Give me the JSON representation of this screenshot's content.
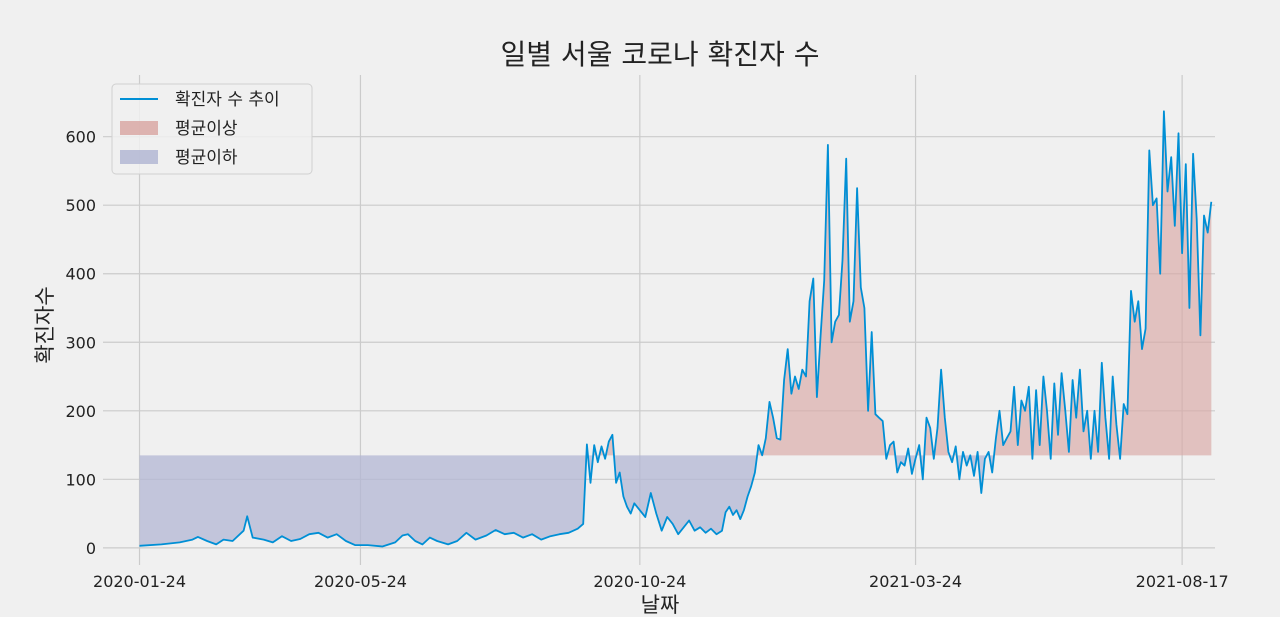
{
  "chart_data": {
    "type": "line",
    "title": "일별 서울 코로나 확진자 수",
    "xlabel": "날짜",
    "ylabel": "확진자수",
    "xlim": [
      "2020-01-04",
      "2021-09-04"
    ],
    "ylim": [
      -25,
      690
    ],
    "x_ticks": [
      "2020-01-24",
      "2020-05-24",
      "2020-10-24",
      "2021-03-24",
      "2021-08-17"
    ],
    "y_ticks": [
      0,
      100,
      200,
      300,
      400,
      500,
      600
    ],
    "mean_value": 135,
    "grid": true,
    "legend_position": "top-left",
    "legend": [
      {
        "label": "확진자 수 추이",
        "kind": "line",
        "color": "#008fd5"
      },
      {
        "label": "평균이상",
        "kind": "patch",
        "color": "#d9a8a4"
      },
      {
        "label": "평균이하",
        "kind": "patch",
        "color": "#b3b7d4"
      }
    ],
    "series": [
      {
        "name": "확진자 수 추이",
        "color": "#008fd5",
        "points": [
          [
            "2020-01-24",
            3
          ],
          [
            "2020-02-05",
            5
          ],
          [
            "2020-02-15",
            8
          ],
          [
            "2020-02-22",
            12
          ],
          [
            "2020-02-25",
            16
          ],
          [
            "2020-03-01",
            10
          ],
          [
            "2020-03-06",
            5
          ],
          [
            "2020-03-10",
            12
          ],
          [
            "2020-03-15",
            10
          ],
          [
            "2020-03-21",
            25
          ],
          [
            "2020-03-23",
            46
          ],
          [
            "2020-03-26",
            15
          ],
          [
            "2020-04-01",
            12
          ],
          [
            "2020-04-06",
            8
          ],
          [
            "2020-04-11",
            17
          ],
          [
            "2020-04-16",
            10
          ],
          [
            "2020-04-21",
            13
          ],
          [
            "2020-04-26",
            20
          ],
          [
            "2020-05-01",
            22
          ],
          [
            "2020-05-06",
            15
          ],
          [
            "2020-05-11",
            20
          ],
          [
            "2020-05-16",
            10
          ],
          [
            "2020-05-21",
            4
          ],
          [
            "2020-05-28",
            4
          ],
          [
            "2020-06-05",
            2
          ],
          [
            "2020-06-12",
            8
          ],
          [
            "2020-06-16",
            18
          ],
          [
            "2020-06-19",
            20
          ],
          [
            "2020-06-23",
            10
          ],
          [
            "2020-06-27",
            5
          ],
          [
            "2020-07-01",
            15
          ],
          [
            "2020-07-05",
            10
          ],
          [
            "2020-07-11",
            5
          ],
          [
            "2020-07-16",
            10
          ],
          [
            "2020-07-21",
            22
          ],
          [
            "2020-07-26",
            12
          ],
          [
            "2020-08-01",
            18
          ],
          [
            "2020-08-06",
            26
          ],
          [
            "2020-08-11",
            20
          ],
          [
            "2020-08-16",
            22
          ],
          [
            "2020-08-21",
            15
          ],
          [
            "2020-08-26",
            20
          ],
          [
            "2020-08-31",
            12
          ],
          [
            "2020-09-05",
            17
          ],
          [
            "2020-09-10",
            20
          ],
          [
            "2020-09-15",
            22
          ],
          [
            "2020-09-20",
            28
          ],
          [
            "2020-09-23",
            35
          ],
          [
            "2020-09-25",
            151
          ],
          [
            "2020-09-27",
            95
          ],
          [
            "2020-09-29",
            150
          ],
          [
            "2020-10-01",
            125
          ],
          [
            "2020-10-03",
            148
          ],
          [
            "2020-10-05",
            130
          ],
          [
            "2020-10-07",
            155
          ],
          [
            "2020-10-09",
            165
          ],
          [
            "2020-10-11",
            95
          ],
          [
            "2020-10-13",
            110
          ],
          [
            "2020-10-15",
            75
          ],
          [
            "2020-10-17",
            60
          ],
          [
            "2020-10-19",
            50
          ],
          [
            "2020-10-21",
            65
          ],
          [
            "2020-10-24",
            55
          ],
          [
            "2020-10-27",
            45
          ],
          [
            "2020-10-30",
            80
          ],
          [
            "2020-11-02",
            50
          ],
          [
            "2020-11-05",
            25
          ],
          [
            "2020-11-08",
            45
          ],
          [
            "2020-11-11",
            35
          ],
          [
            "2020-11-14",
            20
          ],
          [
            "2020-11-17",
            30
          ],
          [
            "2020-11-20",
            40
          ],
          [
            "2020-11-23",
            25
          ],
          [
            "2020-11-26",
            30
          ],
          [
            "2020-11-29",
            22
          ],
          [
            "2020-12-02",
            28
          ],
          [
            "2020-12-05",
            20
          ],
          [
            "2020-12-08",
            25
          ],
          [
            "2020-12-10",
            52
          ],
          [
            "2020-12-12",
            60
          ],
          [
            "2020-12-14",
            48
          ],
          [
            "2020-12-16",
            55
          ],
          [
            "2020-12-18",
            42
          ],
          [
            "2020-12-20",
            55
          ],
          [
            "2020-12-22",
            75
          ],
          [
            "2020-12-24",
            90
          ],
          [
            "2020-12-26",
            110
          ],
          [
            "2020-12-28",
            150
          ],
          [
            "2020-12-30",
            135
          ],
          [
            "2021-01-01",
            160
          ],
          [
            "2021-01-03",
            213
          ],
          [
            "2021-01-05",
            190
          ],
          [
            "2021-01-07",
            160
          ],
          [
            "2021-01-09",
            158
          ],
          [
            "2021-01-11",
            245
          ],
          [
            "2021-01-13",
            290
          ],
          [
            "2021-01-15",
            225
          ],
          [
            "2021-01-17",
            250
          ],
          [
            "2021-01-19",
            232
          ],
          [
            "2021-01-21",
            260
          ],
          [
            "2021-01-23",
            250
          ],
          [
            "2021-01-25",
            360
          ],
          [
            "2021-01-27",
            393
          ],
          [
            "2021-01-29",
            220
          ],
          [
            "2021-01-31",
            310
          ],
          [
            "2021-02-02",
            390
          ],
          [
            "2021-02-04",
            588
          ],
          [
            "2021-02-06",
            300
          ],
          [
            "2021-02-08",
            330
          ],
          [
            "2021-02-10",
            340
          ],
          [
            "2021-02-12",
            420
          ],
          [
            "2021-02-14",
            568
          ],
          [
            "2021-02-16",
            330
          ],
          [
            "2021-02-18",
            360
          ],
          [
            "2021-02-20",
            525
          ],
          [
            "2021-02-22",
            380
          ],
          [
            "2021-02-24",
            350
          ],
          [
            "2021-02-26",
            200
          ],
          [
            "2021-02-28",
            315
          ],
          [
            "2021-03-02",
            195
          ],
          [
            "2021-03-04",
            190
          ],
          [
            "2021-03-06",
            185
          ],
          [
            "2021-03-08",
            130
          ],
          [
            "2021-03-10",
            150
          ],
          [
            "2021-03-12",
            155
          ],
          [
            "2021-03-14",
            110
          ],
          [
            "2021-03-16",
            125
          ],
          [
            "2021-03-18",
            120
          ],
          [
            "2021-03-20",
            145
          ],
          [
            "2021-03-22",
            108
          ],
          [
            "2021-03-24",
            130
          ],
          [
            "2021-03-26",
            150
          ],
          [
            "2021-03-28",
            100
          ],
          [
            "2021-03-30",
            190
          ],
          [
            "2021-04-01",
            175
          ],
          [
            "2021-04-03",
            130
          ],
          [
            "2021-04-05",
            175
          ],
          [
            "2021-04-07",
            260
          ],
          [
            "2021-04-09",
            190
          ],
          [
            "2021-04-11",
            140
          ],
          [
            "2021-04-13",
            125
          ],
          [
            "2021-04-15",
            148
          ],
          [
            "2021-04-17",
            100
          ],
          [
            "2021-04-19",
            140
          ],
          [
            "2021-04-21",
            120
          ],
          [
            "2021-04-23",
            135
          ],
          [
            "2021-04-25",
            105
          ],
          [
            "2021-04-27",
            140
          ],
          [
            "2021-04-29",
            80
          ],
          [
            "2021-05-01",
            130
          ],
          [
            "2021-05-03",
            140
          ],
          [
            "2021-05-05",
            110
          ],
          [
            "2021-05-07",
            160
          ],
          [
            "2021-05-09",
            200
          ],
          [
            "2021-05-11",
            150
          ],
          [
            "2021-05-13",
            160
          ],
          [
            "2021-05-15",
            170
          ],
          [
            "2021-05-17",
            235
          ],
          [
            "2021-05-19",
            150
          ],
          [
            "2021-05-21",
            215
          ],
          [
            "2021-05-23",
            200
          ],
          [
            "2021-05-25",
            235
          ],
          [
            "2021-05-27",
            130
          ],
          [
            "2021-05-29",
            230
          ],
          [
            "2021-05-31",
            150
          ],
          [
            "2021-06-02",
            250
          ],
          [
            "2021-06-04",
            200
          ],
          [
            "2021-06-06",
            130
          ],
          [
            "2021-06-08",
            240
          ],
          [
            "2021-06-10",
            165
          ],
          [
            "2021-06-12",
            255
          ],
          [
            "2021-06-14",
            200
          ],
          [
            "2021-06-16",
            140
          ],
          [
            "2021-06-18",
            245
          ],
          [
            "2021-06-20",
            190
          ],
          [
            "2021-06-22",
            260
          ],
          [
            "2021-06-24",
            170
          ],
          [
            "2021-06-26",
            200
          ],
          [
            "2021-06-28",
            130
          ],
          [
            "2021-06-30",
            200
          ],
          [
            "2021-07-02",
            140
          ],
          [
            "2021-07-04",
            270
          ],
          [
            "2021-07-06",
            190
          ],
          [
            "2021-07-08",
            130
          ],
          [
            "2021-07-10",
            250
          ],
          [
            "2021-07-12",
            180
          ],
          [
            "2021-07-14",
            130
          ],
          [
            "2021-07-16",
            210
          ],
          [
            "2021-07-18",
            195
          ],
          [
            "2021-07-20",
            375
          ],
          [
            "2021-07-22",
            330
          ],
          [
            "2021-07-24",
            360
          ],
          [
            "2021-07-26",
            290
          ],
          [
            "2021-07-28",
            320
          ],
          [
            "2021-07-30",
            580
          ],
          [
            "2021-08-01",
            500
          ],
          [
            "2021-08-03",
            510
          ],
          [
            "2021-08-05",
            400
          ],
          [
            "2021-08-07",
            637
          ],
          [
            "2021-08-09",
            520
          ],
          [
            "2021-08-11",
            570
          ],
          [
            "2021-08-13",
            470
          ],
          [
            "2021-08-15",
            605
          ],
          [
            "2021-08-17",
            430
          ],
          [
            "2021-08-19",
            560
          ],
          [
            "2021-08-21",
            350
          ],
          [
            "2021-08-23",
            575
          ],
          [
            "2021-08-25",
            480
          ],
          [
            "2021-08-27",
            310
          ],
          [
            "2021-08-29",
            485
          ],
          [
            "2021-08-31",
            460
          ],
          [
            "2021-09-02",
            505
          ]
        ]
      }
    ]
  }
}
